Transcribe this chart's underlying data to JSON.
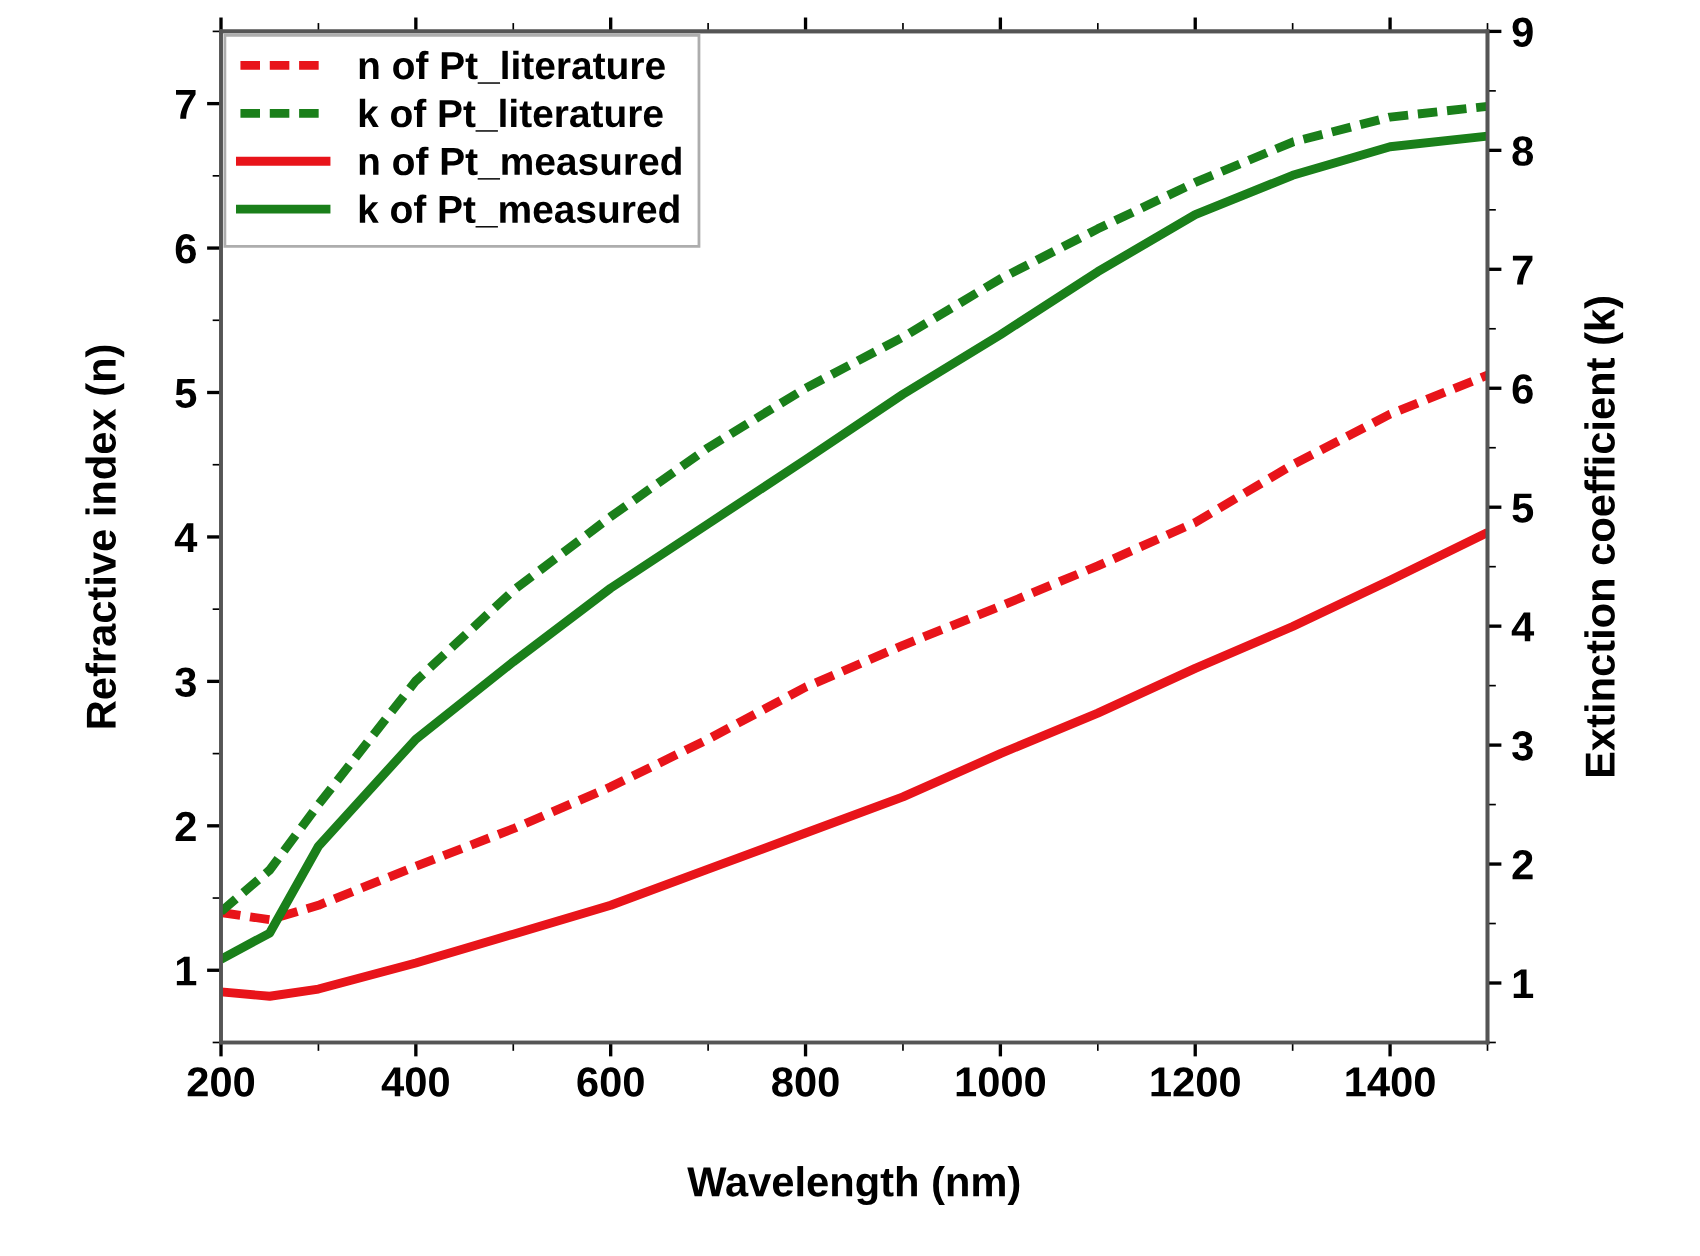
{
  "chart_data": {
    "type": "line",
    "xlabel": "Wavelength (nm)",
    "ylabel": "Refractive index (n)",
    "y2label": "Extinction coefficient (k)",
    "x": [
      200,
      250,
      300,
      400,
      500,
      600,
      700,
      800,
      900,
      1000,
      1100,
      1200,
      1300,
      1400,
      1500
    ],
    "series": [
      {
        "name": "n of Pt_literature",
        "color": "#e8141a",
        "line_style": "dashed",
        "values": [
          1.4,
          1.35,
          1.45,
          1.72,
          1.98,
          2.27,
          2.6,
          2.96,
          3.25,
          3.52,
          3.8,
          4.1,
          4.5,
          4.85,
          5.12
        ]
      },
      {
        "name": "k of Pt_literature",
        "color": "#1a7f1a",
        "line_style": "dashed",
        "axis": "y2",
        "values": [
          1.6,
          1.95,
          2.5,
          3.54,
          4.3,
          4.92,
          5.5,
          6.0,
          6.43,
          6.92,
          7.34,
          7.73,
          8.07,
          8.28,
          8.37
        ]
      },
      {
        "name": "n of Pt_measured",
        "color": "#e8141a",
        "line_style": "solid",
        "values": [
          0.85,
          0.82,
          0.87,
          1.05,
          1.25,
          1.45,
          1.7,
          1.95,
          2.2,
          2.5,
          2.78,
          3.09,
          3.38,
          3.7,
          4.03
        ]
      },
      {
        "name": "k of Pt_measured",
        "color": "#1a7f1a",
        "line_style": "solid",
        "axis": "y2",
        "values": [
          1.2,
          1.42,
          2.15,
          3.05,
          3.7,
          4.32,
          4.86,
          5.4,
          5.95,
          6.45,
          6.98,
          7.46,
          7.79,
          8.03,
          8.12
        ]
      }
    ],
    "xlim": [
      200,
      1500
    ],
    "xticks": [
      200,
      400,
      600,
      800,
      1000,
      1200,
      1400
    ],
    "ylim": [
      0.5,
      7.5
    ],
    "yticks": [
      1,
      2,
      3,
      4,
      5,
      6,
      7
    ],
    "y2lim": [
      0.5,
      9
    ],
    "y2ticks": [
      1,
      2,
      3,
      4,
      5,
      6,
      7,
      8,
      9
    ],
    "grid": false,
    "legend": "top left"
  }
}
